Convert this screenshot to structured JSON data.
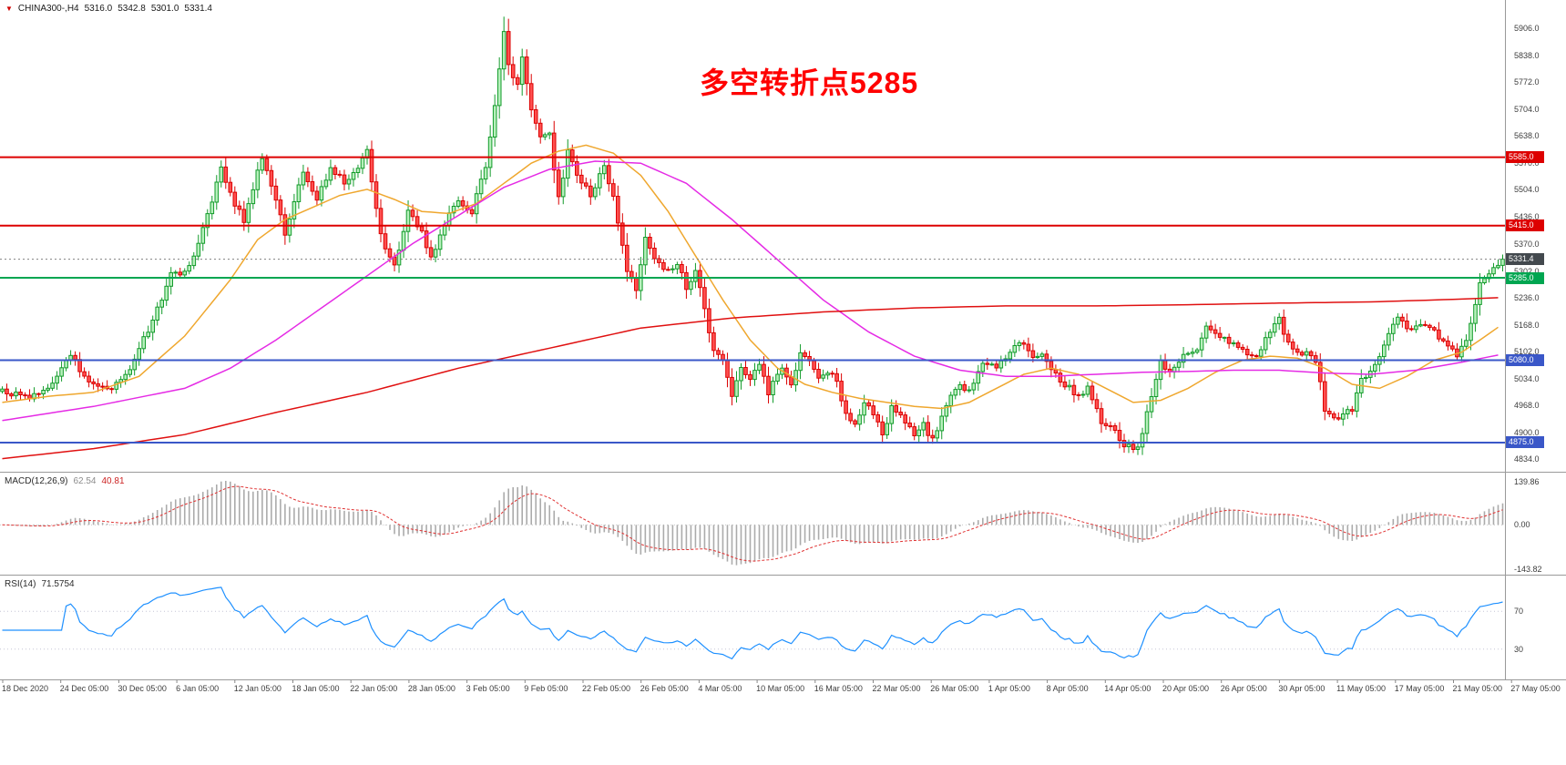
{
  "header": {
    "marker": "▼",
    "symbol_period": "CHINA300-,H4",
    "open": "5316.0",
    "high": "5342.8",
    "low": "5301.0",
    "close": "5331.4"
  },
  "annotation": {
    "text": "多空转折点5285",
    "color": "#ff0000"
  },
  "price_axis": {
    "ticks": [
      "5906.0",
      "5838.0",
      "5772.0",
      "5704.0",
      "5638.0",
      "5570.0",
      "5504.0",
      "5436.0",
      "5370.0",
      "5302.0",
      "5236.0",
      "5168.0",
      "5102.0",
      "5034.0",
      "4968.0",
      "4900.0",
      "4834.0"
    ]
  },
  "levels": [
    {
      "label": "5585.0",
      "price": 5585.0,
      "line_color": "#dd0000",
      "tag_color": "#dd0000",
      "line_width": 2
    },
    {
      "label": "5415.0",
      "price": 5415.0,
      "line_color": "#dd0000",
      "tag_color": "#dd0000",
      "line_width": 2
    },
    {
      "label": "5331.4",
      "price": 5331.4,
      "line_color": "#808080",
      "tag_color": "#43494e",
      "line_width": 1,
      "dash": "2,3"
    },
    {
      "label": "5285.0",
      "price": 5285.0,
      "line_color": "#00A651",
      "tag_color": "#00A651",
      "line_width": 2
    },
    {
      "label": "5080.0",
      "price": 5080.0,
      "line_color": "#3a57c8",
      "tag_color": "#3a57c8",
      "line_width": 2
    },
    {
      "label": "4875.0",
      "price": 4875.0,
      "line_color": "#3a57c8",
      "tag_color": "#3a57c8",
      "line_width": 2
    }
  ],
  "chart_data": {
    "type": "candlestick",
    "title": "CHINA300- H4 chart with MACD and RSI",
    "symbol": "CHINA300-",
    "timeframe": "H4",
    "last": {
      "open": 5316.0,
      "high": 5342.8,
      "low": 5301.0,
      "close": 5331.4
    },
    "num_candles": 330,
    "y_range": [
      4807,
      5958
    ],
    "grid": false,
    "colors": {
      "bull_fill": "#b7f0bc",
      "bull_border": "#129b2a",
      "bear_fill": "#ff5050",
      "bear_border": "#db0000",
      "histogram": "#ababab",
      "macd_signal": "#e03232",
      "rsi_line": "#1E90FF",
      "rsi_levels": "#c5c5d5",
      "separator": "#9a9a9a"
    },
    "close_waypoints": [
      [
        0,
        5005
      ],
      [
        6,
        4985
      ],
      [
        10,
        5010
      ],
      [
        15,
        5095
      ],
      [
        19,
        5020
      ],
      [
        24,
        5010
      ],
      [
        28,
        5060
      ],
      [
        33,
        5180
      ],
      [
        37,
        5290
      ],
      [
        41,
        5310
      ],
      [
        45,
        5440
      ],
      [
        48,
        5560
      ],
      [
        51,
        5470
      ],
      [
        53,
        5430
      ],
      [
        57,
        5585
      ],
      [
        60,
        5480
      ],
      [
        62,
        5390
      ],
      [
        66,
        5550
      ],
      [
        69,
        5480
      ],
      [
        72,
        5560
      ],
      [
        75,
        5520
      ],
      [
        78,
        5560
      ],
      [
        80,
        5600
      ],
      [
        83,
        5390
      ],
      [
        86,
        5310
      ],
      [
        89,
        5450
      ],
      [
        92,
        5400
      ],
      [
        94,
        5330
      ],
      [
        97,
        5420
      ],
      [
        100,
        5480
      ],
      [
        103,
        5450
      ],
      [
        106,
        5560
      ],
      [
        108,
        5720
      ],
      [
        110,
        5900
      ],
      [
        111,
        5810
      ],
      [
        113,
        5760
      ],
      [
        114,
        5830
      ],
      [
        116,
        5700
      ],
      [
        118,
        5630
      ],
      [
        120,
        5640
      ],
      [
        122,
        5480
      ],
      [
        124,
        5600
      ],
      [
        126,
        5540
      ],
      [
        129,
        5490
      ],
      [
        132,
        5560
      ],
      [
        134,
        5480
      ],
      [
        137,
        5300
      ],
      [
        139,
        5260
      ],
      [
        141,
        5380
      ],
      [
        143,
        5340
      ],
      [
        145,
        5300
      ],
      [
        148,
        5320
      ],
      [
        150,
        5260
      ],
      [
        152,
        5300
      ],
      [
        154,
        5210
      ],
      [
        156,
        5100
      ],
      [
        158,
        5080
      ],
      [
        160,
        4990
      ],
      [
        162,
        5060
      ],
      [
        164,
        5030
      ],
      [
        166,
        5070
      ],
      [
        168,
        5000
      ],
      [
        171,
        5060
      ],
      [
        173,
        5020
      ],
      [
        175,
        5100
      ],
      [
        177,
        5080
      ],
      [
        179,
        5030
      ],
      [
        181,
        5050
      ],
      [
        183,
        5030
      ],
      [
        185,
        4940
      ],
      [
        187,
        4920
      ],
      [
        189,
        4980
      ],
      [
        191,
        4950
      ],
      [
        193,
        4900
      ],
      [
        195,
        4960
      ],
      [
        197,
        4940
      ],
      [
        200,
        4890
      ],
      [
        202,
        4920
      ],
      [
        204,
        4880
      ],
      [
        207,
        4970
      ],
      [
        210,
        5020
      ],
      [
        212,
        5000
      ],
      [
        215,
        5080
      ],
      [
        218,
        5060
      ],
      [
        220,
        5090
      ],
      [
        223,
        5130
      ],
      [
        226,
        5080
      ],
      [
        228,
        5090
      ],
      [
        230,
        5050
      ],
      [
        233,
        5020
      ],
      [
        236,
        4990
      ],
      [
        238,
        5010
      ],
      [
        241,
        4930
      ],
      [
        244,
        4900
      ],
      [
        246,
        4870
      ],
      [
        249,
        4860
      ],
      [
        252,
        4990
      ],
      [
        254,
        5080
      ],
      [
        256,
        5050
      ],
      [
        259,
        5090
      ],
      [
        262,
        5110
      ],
      [
        264,
        5160
      ],
      [
        267,
        5140
      ],
      [
        270,
        5120
      ],
      [
        272,
        5100
      ],
      [
        275,
        5090
      ],
      [
        278,
        5150
      ],
      [
        280,
        5180
      ],
      [
        282,
        5120
      ],
      [
        285,
        5100
      ],
      [
        288,
        5080
      ],
      [
        290,
        4960
      ],
      [
        293,
        4930
      ],
      [
        296,
        4960
      ],
      [
        298,
        5030
      ],
      [
        301,
        5070
      ],
      [
        304,
        5150
      ],
      [
        306,
        5190
      ],
      [
        308,
        5160
      ],
      [
        311,
        5170
      ],
      [
        314,
        5160
      ],
      [
        316,
        5120
      ],
      [
        319,
        5090
      ],
      [
        321,
        5130
      ],
      [
        324,
        5270
      ],
      [
        326,
        5300
      ],
      [
        328,
        5320
      ],
      [
        329,
        5331.4
      ]
    ],
    "moving_averages": [
      {
        "name": "fast-ma",
        "color": "#EFA72E",
        "waypoints": [
          [
            0,
            4975
          ],
          [
            10,
            4990
          ],
          [
            20,
            5000
          ],
          [
            30,
            5040
          ],
          [
            40,
            5140
          ],
          [
            50,
            5280
          ],
          [
            56,
            5380
          ],
          [
            62,
            5430
          ],
          [
            68,
            5460
          ],
          [
            74,
            5490
          ],
          [
            80,
            5505
          ],
          [
            86,
            5480
          ],
          [
            92,
            5450
          ],
          [
            98,
            5445
          ],
          [
            104,
            5470
          ],
          [
            110,
            5520
          ],
          [
            116,
            5570
          ],
          [
            122,
            5600
          ],
          [
            128,
            5615
          ],
          [
            134,
            5595
          ],
          [
            140,
            5540
          ],
          [
            146,
            5450
          ],
          [
            152,
            5340
          ],
          [
            158,
            5230
          ],
          [
            164,
            5130
          ],
          [
            170,
            5060
          ],
          [
            176,
            5020
          ],
          [
            182,
            5000
          ],
          [
            188,
            4985
          ],
          [
            194,
            4975
          ],
          [
            200,
            4965
          ],
          [
            206,
            4960
          ],
          [
            212,
            4975
          ],
          [
            218,
            5010
          ],
          [
            224,
            5045
          ],
          [
            230,
            5060
          ],
          [
            236,
            5045
          ],
          [
            242,
            5010
          ],
          [
            248,
            4975
          ],
          [
            254,
            4980
          ],
          [
            260,
            5010
          ],
          [
            266,
            5050
          ],
          [
            272,
            5080
          ],
          [
            278,
            5090
          ],
          [
            284,
            5085
          ],
          [
            290,
            5060
          ],
          [
            296,
            5020
          ],
          [
            302,
            5010
          ],
          [
            308,
            5040
          ],
          [
            314,
            5080
          ],
          [
            320,
            5100
          ],
          [
            324,
            5130
          ],
          [
            329,
            5170
          ]
        ]
      },
      {
        "name": "mid-ma",
        "color": "#E52BE5",
        "waypoints": [
          [
            0,
            4930
          ],
          [
            20,
            4965
          ],
          [
            40,
            5010
          ],
          [
            50,
            5060
          ],
          [
            60,
            5130
          ],
          [
            70,
            5210
          ],
          [
            80,
            5290
          ],
          [
            90,
            5370
          ],
          [
            100,
            5440
          ],
          [
            110,
            5510
          ],
          [
            120,
            5555
          ],
          [
            130,
            5575
          ],
          [
            140,
            5570
          ],
          [
            150,
            5520
          ],
          [
            160,
            5430
          ],
          [
            170,
            5330
          ],
          [
            180,
            5230
          ],
          [
            190,
            5150
          ],
          [
            200,
            5090
          ],
          [
            210,
            5055
          ],
          [
            220,
            5040
          ],
          [
            230,
            5040
          ],
          [
            240,
            5045
          ],
          [
            250,
            5050
          ],
          [
            260,
            5052
          ],
          [
            270,
            5055
          ],
          [
            280,
            5055
          ],
          [
            290,
            5048
          ],
          [
            300,
            5045
          ],
          [
            310,
            5055
          ],
          [
            320,
            5075
          ],
          [
            329,
            5095
          ]
        ]
      },
      {
        "name": "slow-ma",
        "color": "#e01010",
        "waypoints": [
          [
            0,
            4835
          ],
          [
            20,
            4860
          ],
          [
            40,
            4895
          ],
          [
            60,
            4950
          ],
          [
            80,
            5000
          ],
          [
            100,
            5060
          ],
          [
            120,
            5110
          ],
          [
            140,
            5160
          ],
          [
            160,
            5185
          ],
          [
            180,
            5200
          ],
          [
            200,
            5210
          ],
          [
            220,
            5215
          ],
          [
            240,
            5215
          ],
          [
            260,
            5218
          ],
          [
            280,
            5222
          ],
          [
            300,
            5225
          ],
          [
            320,
            5232
          ],
          [
            329,
            5236
          ]
        ]
      }
    ],
    "time_labels": [
      "18 Dec 2020",
      "24 Dec 05:00",
      "30 Dec 05:00",
      "6 Jan 05:00",
      "12 Jan 05:00",
      "18 Jan 05:00",
      "22 Jan 05:00",
      "28 Jan 05:00",
      "3 Feb 05:00",
      "9 Feb 05:00",
      "22 Feb 05:00",
      "26 Feb 05:00",
      "4 Mar 05:00",
      "10 Mar 05:00",
      "16 Mar 05:00",
      "22 Mar 05:00",
      "26 Mar 05:00",
      "1 Apr 05:00",
      "8 Apr 05:00",
      "14 Apr 05:00",
      "20 Apr 05:00",
      "26 Apr 05:00",
      "30 Apr 05:00",
      "11 May 05:00",
      "17 May 05:00",
      "21 May 05:00",
      "27 May 05:00"
    ],
    "macd": {
      "label": "MACD(12,26,9)",
      "main": "62.54",
      "signal": "40.81",
      "fast": 12,
      "slow": 26,
      "signal_period": 9,
      "axis_max": "139.86",
      "axis_zero": "0.00",
      "axis_min": "-143.82"
    },
    "rsi": {
      "label": "RSI(14)",
      "value": "71.5754",
      "period": 14,
      "levels": [
        70,
        30
      ],
      "level_labels": [
        "70",
        "30"
      ]
    }
  }
}
